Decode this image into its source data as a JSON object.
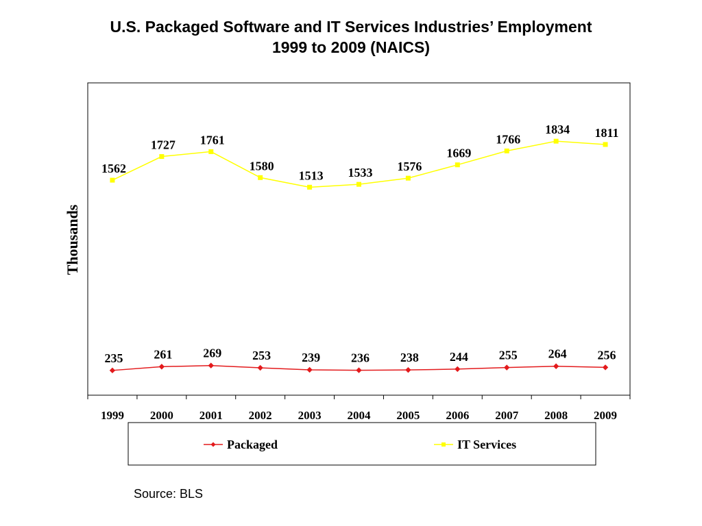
{
  "title": {
    "line1": "U.S.  Packaged Software and IT Services Industries’ Employment",
    "line2": "1999 to 2009 (NAICS)"
  },
  "source": "Source: BLS",
  "chart_data": {
    "type": "line",
    "x": [
      "1999",
      "2000",
      "2001",
      "2002",
      "2003",
      "2004",
      "2005",
      "2006",
      "2007",
      "2008",
      "2009"
    ],
    "ylabel": "Thousands",
    "xlabel": "",
    "ylim": [
      0,
      2000
    ],
    "grid": false,
    "legend_position": "bottom",
    "series": [
      {
        "name": "Packaged",
        "color": "#e31a1c",
        "marker": "diamond",
        "values": [
          235,
          261,
          269,
          253,
          239,
          236,
          238,
          244,
          255,
          264,
          256
        ]
      },
      {
        "name": "IT Services",
        "color": "#ffff00",
        "marker": "square",
        "values": [
          1562,
          1727,
          1761,
          1580,
          1513,
          1533,
          1576,
          1669,
          1766,
          1834,
          1811
        ]
      }
    ]
  }
}
